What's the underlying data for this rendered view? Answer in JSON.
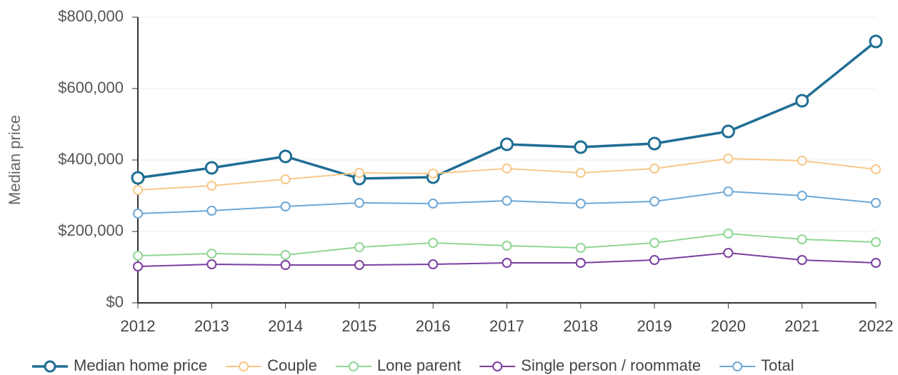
{
  "chart_data": {
    "type": "line",
    "y_label": "Median price",
    "categories": [
      "2012",
      "2013",
      "2014",
      "2015",
      "2016",
      "2017",
      "2018",
      "2019",
      "2020",
      "2021",
      "2022"
    ],
    "series": [
      {
        "name": "Median home price",
        "color": "#1f6e94",
        "values": [
          350000,
          378000,
          410000,
          348000,
          352000,
          444000,
          436000,
          446000,
          480000,
          566000,
          732000
        ]
      },
      {
        "name": "Couple",
        "color": "#f7c889",
        "values": [
          316000,
          328000,
          346000,
          364000,
          362000,
          376000,
          364000,
          376000,
          404000,
          398000,
          374000
        ]
      },
      {
        "name": "Lone parent",
        "color": "#8fd694",
        "values": [
          132000,
          138000,
          134000,
          156000,
          168000,
          160000,
          154000,
          168000,
          194000,
          178000,
          170000
        ]
      },
      {
        "name": "Single person / roommate",
        "color": "#7b3fa0",
        "values": [
          102000,
          108000,
          106000,
          106000,
          108000,
          112000,
          112000,
          120000,
          140000,
          120000,
          112000
        ]
      },
      {
        "name": "Total",
        "color": "#6fa8d6",
        "values": [
          250000,
          258000,
          270000,
          280000,
          278000,
          286000,
          278000,
          284000,
          312000,
          300000,
          280000
        ]
      }
    ],
    "ylim": [
      0,
      800000
    ],
    "yticks": [
      {
        "value": 0,
        "label": "$0"
      },
      {
        "value": 200000,
        "label": "$200,000"
      },
      {
        "value": 400000,
        "label": "$400,000"
      },
      {
        "value": 600000,
        "label": "$600,000"
      },
      {
        "value": 800000,
        "label": "$800,000"
      }
    ],
    "grid": true,
    "legend": "bottom"
  }
}
